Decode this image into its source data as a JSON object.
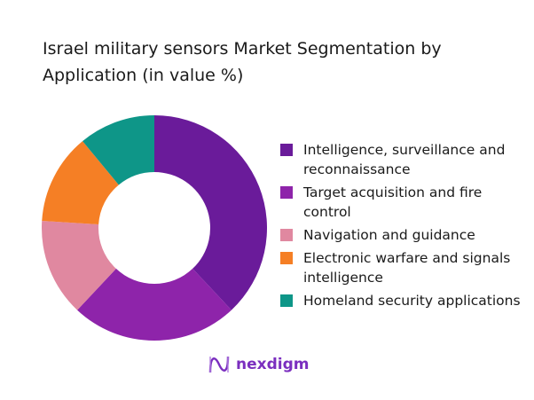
{
  "chart_data": {
    "type": "pie",
    "donut": true,
    "title": "Israel military sensors Market Segmentation by Application (in value %)",
    "categories": [
      "Intelligence, surveillance and reconnaissance",
      "Target acquisition and fire control",
      "Navigation and guidance",
      "Electronic warfare and signals intelligence",
      "Homeland security applications"
    ],
    "values": [
      38,
      24,
      14,
      13,
      11
    ],
    "colors": [
      "#6a1b9a",
      "#8e24aa",
      "#e088a0",
      "#f57f25",
      "#0e9688"
    ],
    "legend_position": "right"
  },
  "logo": {
    "text": "nexdigm",
    "color": "#7b2fbf"
  }
}
